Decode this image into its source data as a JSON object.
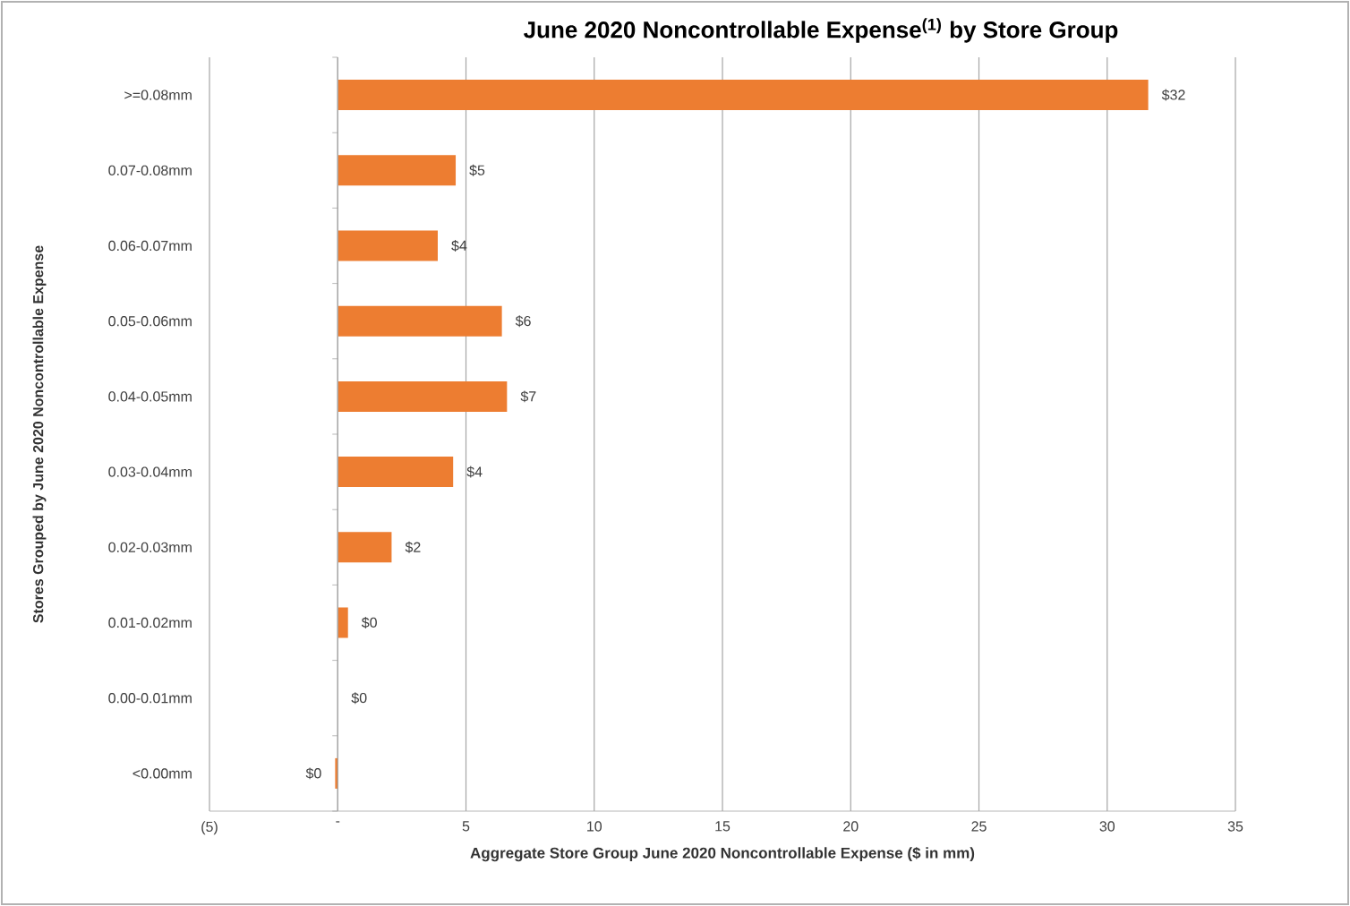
{
  "chart_data": {
    "type": "bar",
    "orientation": "horizontal",
    "title": "June 2020 Noncontrollable Expense$^{(1)}$ by Store Group",
    "xlabel": "Aggregate Store Group June 2020 Noncontrollable Expense ($ in mm)",
    "ylabel": "Stores Grouped by June 2020 Noncontrollable Expense",
    "categories": [
      ">=0.08mm",
      "0.07-0.08mm",
      "0.06-0.07mm",
      "0.05-0.06mm",
      "0.04-0.05mm",
      "0.03-0.04mm",
      "0.02-0.03mm",
      "0.01-0.02mm",
      "0.00-0.01mm",
      "<0.00mm"
    ],
    "values": [
      31.6,
      4.6,
      3.9,
      6.4,
      6.6,
      4.5,
      2.1,
      0.4,
      0,
      -0.1
    ],
    "value_labels": [
      "$32",
      "$5",
      "$4",
      "$6",
      "$7",
      "$4",
      "$2",
      "$0",
      "$0",
      "$0"
    ],
    "color": "#ed7d31",
    "xlim": [
      -5,
      35
    ],
    "xticks": [
      {
        "value": -5,
        "label": "(5)"
      },
      {
        "value": 0,
        "label": "-"
      },
      5,
      10,
      15,
      20,
      25,
      30,
      35
    ],
    "grid": "x"
  }
}
